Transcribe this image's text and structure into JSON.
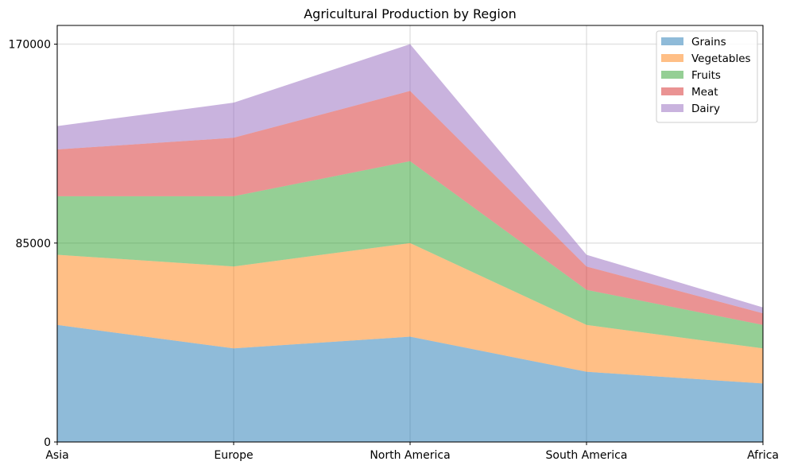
{
  "chart_data": {
    "type": "area",
    "stacked": true,
    "title": "Agricultural Production by Region",
    "xlabel": "",
    "ylabel": "",
    "categories": [
      "Asia",
      "Europe",
      "North America",
      "South America",
      "Africa"
    ],
    "yticks": [
      0,
      85000,
      170000
    ],
    "ylim": [
      0,
      178000
    ],
    "grid": true,
    "legend_position": "top-right",
    "series": [
      {
        "name": "Grains",
        "color": "#1f77b4",
        "values": [
          50000,
          40000,
          45000,
          30000,
          25000
        ]
      },
      {
        "name": "Vegetables",
        "color": "#ff7f0e",
        "values": [
          30000,
          35000,
          40000,
          20000,
          15000
        ]
      },
      {
        "name": "Fruits",
        "color": "#2ca02c",
        "values": [
          25000,
          30000,
          35000,
          15000,
          10000
        ]
      },
      {
        "name": "Meat",
        "color": "#d62728",
        "values": [
          20000,
          25000,
          30000,
          10000,
          5000
        ]
      },
      {
        "name": "Dairy",
        "color": "#9467bd",
        "values": [
          10000,
          15000,
          20000,
          5000,
          2500
        ]
      }
    ]
  }
}
